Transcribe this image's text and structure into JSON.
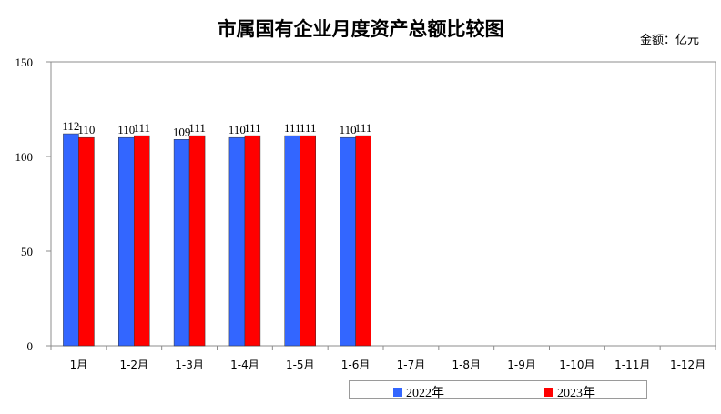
{
  "chart_data": {
    "type": "bar",
    "title": "市属国有企业月度资产总额比较图",
    "unit_label": "金额：亿元",
    "categories": [
      "1月",
      "1-2月",
      "1-3月",
      "1-4月",
      "1-5月",
      "1-6月",
      "1-7月",
      "1-8月",
      "1-9月",
      "1-10月",
      "1-11月",
      "1-12月"
    ],
    "series": [
      {
        "name": "2022年",
        "color": "#3366ff",
        "values": [
          112,
          110,
          109,
          110,
          111,
          110,
          null,
          null,
          null,
          null,
          null,
          null
        ]
      },
      {
        "name": "2023年",
        "color": "#ff0000",
        "values": [
          110,
          111,
          111,
          111,
          111,
          111,
          null,
          null,
          null,
          null,
          null,
          null
        ]
      }
    ],
    "ylim": [
      0,
      150
    ],
    "yticks": [
      0,
      50,
      100,
      150
    ],
    "grid": false,
    "legend_position": "bottom"
  }
}
